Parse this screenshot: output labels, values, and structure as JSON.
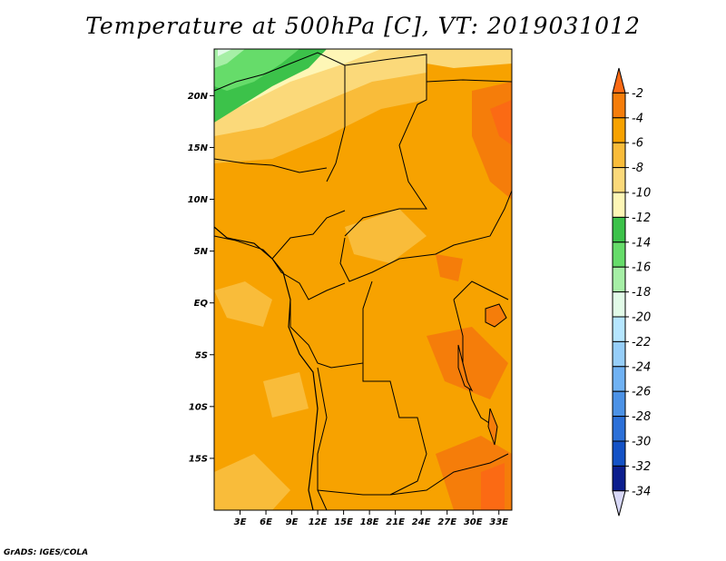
{
  "title": "Temperature at 500hPa [C], VT: 2019031012",
  "credit": "GrADS: IGES/COLA",
  "map": {
    "lat_labels": [
      "20N",
      "15N",
      "10N",
      "5N",
      "EQ",
      "5S",
      "10S",
      "15S"
    ],
    "lon_labels": [
      "3E",
      "6E",
      "9E",
      "12E",
      "15E",
      "18E",
      "21E",
      "24E",
      "27E",
      "30E",
      "33E"
    ],
    "lat_values": [
      20,
      15,
      10,
      5,
      0,
      -5,
      -10,
      -15
    ],
    "lon_values": [
      3,
      6,
      9,
      12,
      15,
      18,
      21,
      24,
      27,
      30,
      33
    ],
    "lat_range": [
      -20,
      24.5
    ],
    "lon_range": [
      0,
      34.5
    ]
  },
  "colorbar": {
    "labels": [
      "-2",
      "-4",
      "-6",
      "-8",
      "-10",
      "-12",
      "-14",
      "-16",
      "-18",
      "-20",
      "-22",
      "-24",
      "-26",
      "-28",
      "-30",
      "-32",
      "-34"
    ],
    "colors": [
      "#fb6a14",
      "#f57d0a",
      "#f7a200",
      "#f9bc3a",
      "#fbd97a",
      "#fef6b6",
      "#3cc24a",
      "#66dc6a",
      "#a6efa6",
      "#e2fbe8",
      "#b6e6ff",
      "#96cef9",
      "#70b2f3",
      "#4c92e6",
      "#2c70d8",
      "#1452c6",
      "#0c1e8e",
      "#d8d8f8"
    ]
  }
}
